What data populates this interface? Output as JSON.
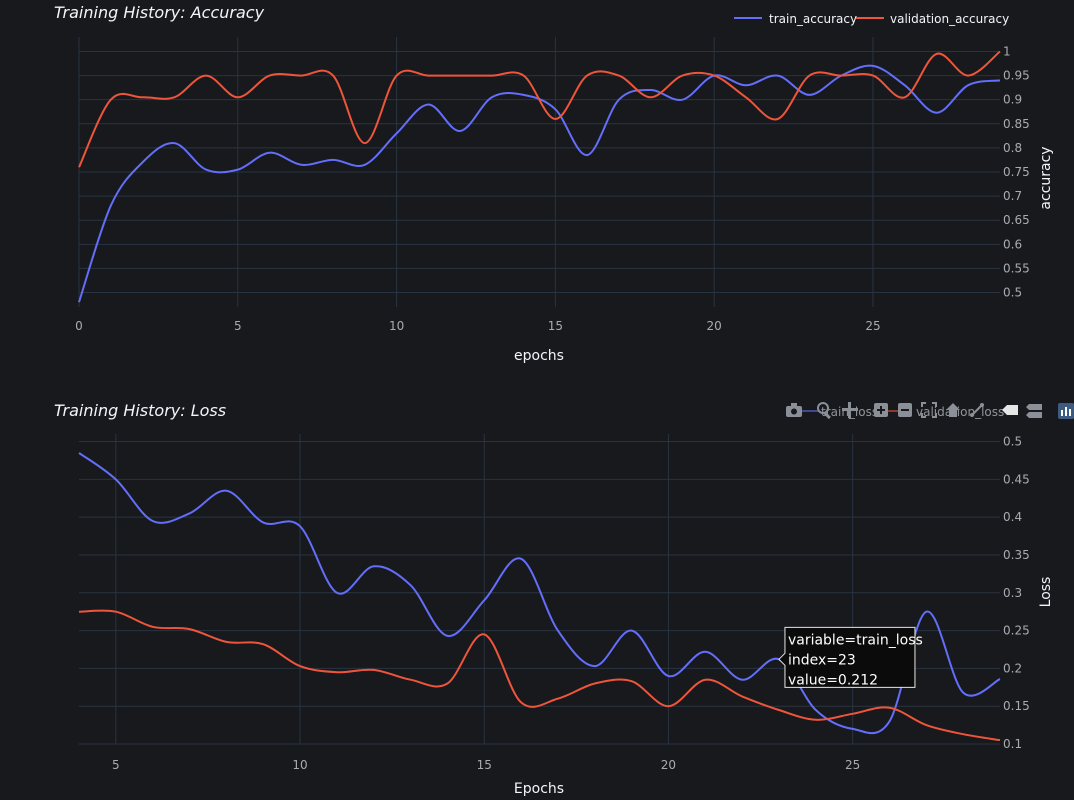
{
  "toolbar": {
    "icons": [
      "camera-icon",
      "zoom-icon",
      "pan-icon",
      "zoom-in-icon",
      "zoom-out-icon",
      "autoscale-icon",
      "reset-axes-icon",
      "spike-lines-icon",
      "hover-closest-icon",
      "hover-compare-icon",
      "plotly-logo-icon"
    ]
  },
  "tooltip": {
    "line1": "variable=train_loss",
    "line2": "index=23",
    "line3": "value=0.212",
    "x": 23,
    "y": 0.212
  },
  "chart_data": [
    {
      "type": "line",
      "title": "Training History: Accuracy",
      "xlabel": "epochs",
      "ylabel": "accuracy",
      "xlim": [
        0,
        29
      ],
      "ylim": [
        0.47,
        1.03
      ],
      "xticks": [
        0,
        5,
        10,
        15,
        20,
        25
      ],
      "yticks": [
        0.5,
        0.55,
        0.6,
        0.65,
        0.7,
        0.75,
        0.8,
        0.85,
        0.9,
        0.95,
        1
      ],
      "ytick_labels": [
        "0.5",
        "0.55",
        "0.6",
        "0.65",
        "0.7",
        "0.75",
        "0.8",
        "0.85",
        "0.9",
        "0.95",
        "1"
      ],
      "legend": "top-right",
      "grid": true,
      "x": [
        0,
        1,
        2,
        3,
        4,
        5,
        6,
        7,
        8,
        9,
        10,
        11,
        12,
        13,
        14,
        15,
        16,
        17,
        18,
        19,
        20,
        21,
        22,
        23,
        24,
        25,
        26,
        27,
        28,
        29
      ],
      "series": [
        {
          "name": "train_accuracy",
          "color": "#636efa",
          "values": [
            0.48,
            0.68,
            0.77,
            0.81,
            0.755,
            0.755,
            0.79,
            0.765,
            0.775,
            0.765,
            0.83,
            0.89,
            0.835,
            0.905,
            0.91,
            0.88,
            0.785,
            0.9,
            0.92,
            0.9,
            0.95,
            0.93,
            0.95,
            0.91,
            0.95,
            0.97,
            0.93,
            0.873,
            0.93,
            0.94
          ]
        },
        {
          "name": "validation_accuracy",
          "color": "#ef553b",
          "values": [
            0.76,
            0.9,
            0.905,
            0.905,
            0.95,
            0.905,
            0.95,
            0.95,
            0.95,
            0.81,
            0.95,
            0.95,
            0.95,
            0.95,
            0.95,
            0.86,
            0.95,
            0.95,
            0.905,
            0.95,
            0.95,
            0.905,
            0.86,
            0.95,
            0.95,
            0.95,
            0.905,
            0.995,
            0.95,
            1.0
          ]
        }
      ]
    },
    {
      "type": "line",
      "title": "Training History: Loss",
      "xlabel": "Epochs",
      "ylabel": "Loss",
      "xlim": [
        4,
        29
      ],
      "ylim": [
        0.1,
        0.51
      ],
      "xticks": [
        5,
        10,
        15,
        20,
        25
      ],
      "yticks": [
        0.1,
        0.15,
        0.2,
        0.25,
        0.3,
        0.35,
        0.4,
        0.45,
        0.5
      ],
      "ytick_labels": [
        "0.1",
        "0.15",
        "0.2",
        "0.25",
        "0.3",
        "0.35",
        "0.4",
        "0.45",
        "0.5"
      ],
      "legend": "top-right",
      "grid": true,
      "x": [
        4,
        5,
        6,
        7,
        8,
        9,
        10,
        11,
        12,
        13,
        14,
        15,
        16,
        17,
        18,
        19,
        20,
        21,
        22,
        23,
        24,
        25,
        26,
        27,
        28,
        29
      ],
      "series": [
        {
          "name": "train_loss",
          "color": "#636efa",
          "values": [
            0.485,
            0.45,
            0.395,
            0.405,
            0.435,
            0.393,
            0.388,
            0.3,
            0.335,
            0.31,
            0.243,
            0.29,
            0.345,
            0.25,
            0.203,
            0.25,
            0.19,
            0.222,
            0.185,
            0.212,
            0.145,
            0.12,
            0.13,
            0.275,
            0.168,
            0.186
          ]
        },
        {
          "name": "validation_loss",
          "color": "#ef553b",
          "values": [
            0.275,
            0.275,
            0.255,
            0.252,
            0.235,
            0.232,
            0.203,
            0.195,
            0.198,
            0.185,
            0.18,
            0.245,
            0.155,
            0.16,
            0.18,
            0.183,
            0.15,
            0.185,
            0.163,
            0.145,
            0.132,
            0.14,
            0.148,
            0.125,
            0.113,
            0.105
          ]
        }
      ]
    }
  ]
}
